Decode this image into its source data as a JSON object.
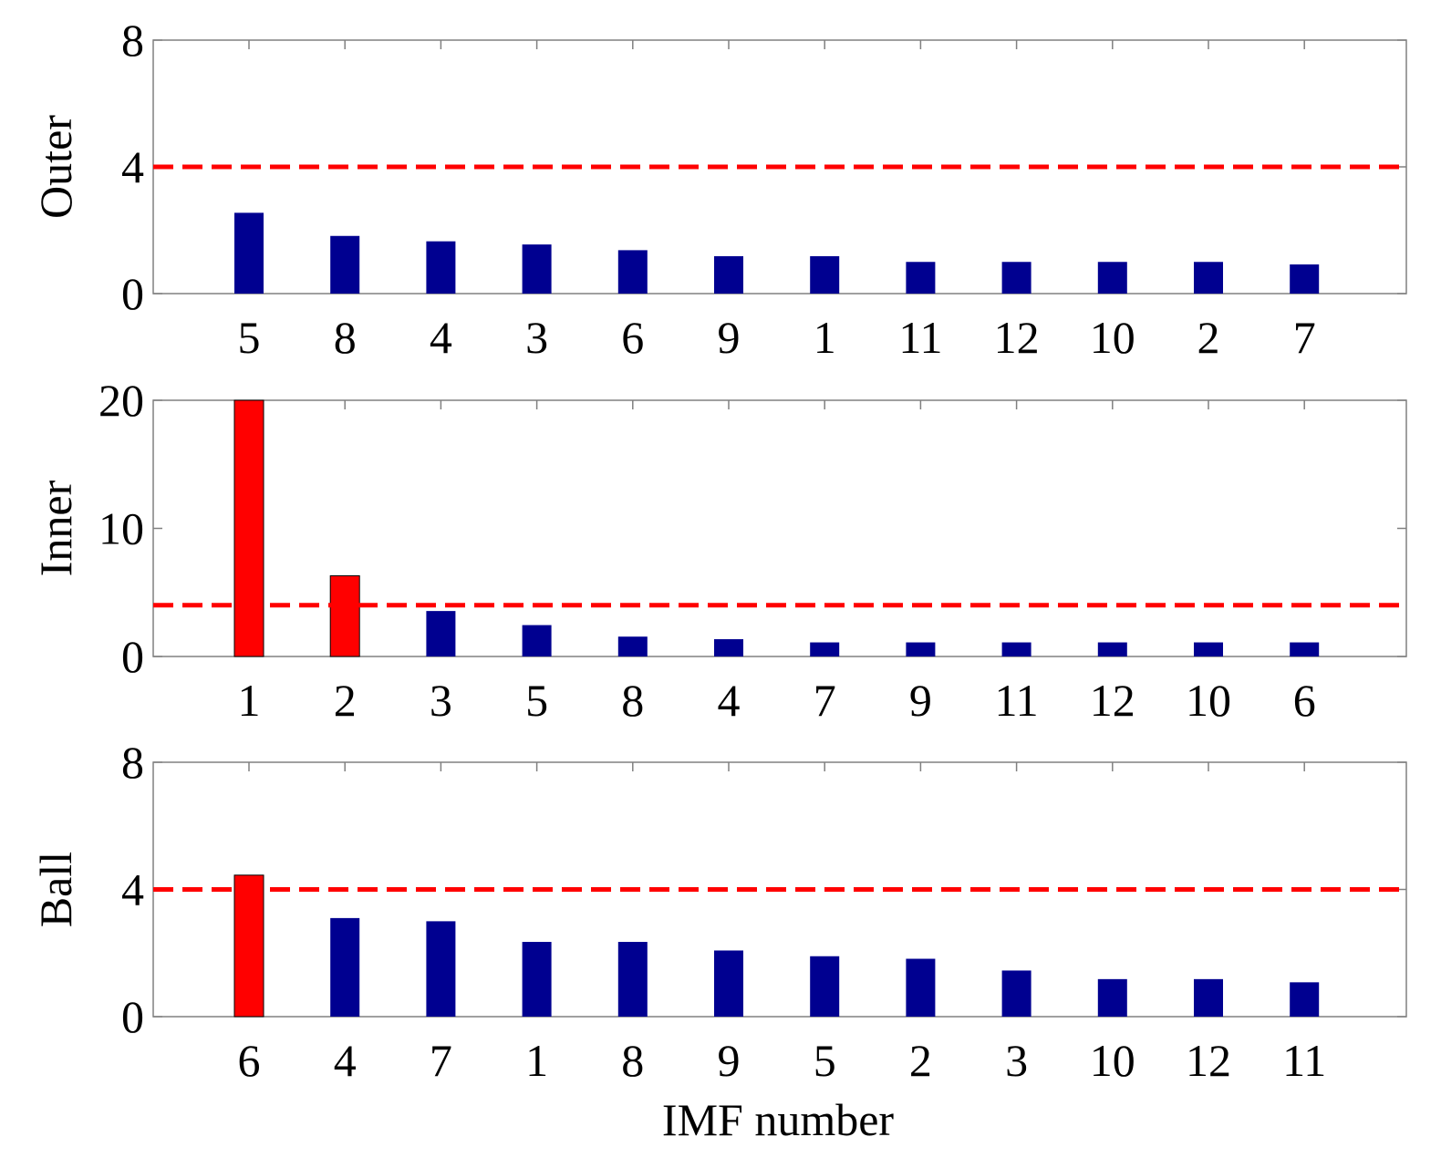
{
  "figure": {
    "xlabel": "IMF number",
    "colors": {
      "below_threshold": "#000090",
      "above_threshold": "#ff0000",
      "threshold_line": "#ff0000",
      "axes": "#808080"
    }
  },
  "chart_data": [
    {
      "type": "bar",
      "ylabel": "Outer",
      "categories": [
        "5",
        "8",
        "4",
        "3",
        "6",
        "9",
        "1",
        "11",
        "12",
        "10",
        "2",
        "7"
      ],
      "values": [
        2.55,
        1.82,
        1.65,
        1.55,
        1.37,
        1.18,
        1.18,
        1.0,
        1.0,
        1.0,
        1.0,
        0.92
      ],
      "threshold": 4,
      "ylim": [
        0,
        8
      ],
      "yticks": [
        "0",
        "4",
        "8"
      ],
      "yticks_values": [
        0,
        4,
        8
      ],
      "grid": false
    },
    {
      "type": "bar",
      "ylabel": "Inner",
      "categories": [
        "1",
        "2",
        "3",
        "5",
        "8",
        "4",
        "7",
        "9",
        "11",
        "12",
        "10",
        "6"
      ],
      "values": [
        20.0,
        6.3,
        3.55,
        2.45,
        1.55,
        1.35,
        1.1,
        1.1,
        1.1,
        1.1,
        1.1,
        1.1
      ],
      "threshold": 4,
      "ylim": [
        0,
        20
      ],
      "yticks": [
        "0",
        "10",
        "20"
      ],
      "yticks_values": [
        0,
        10,
        20
      ],
      "grid": false
    },
    {
      "type": "bar",
      "ylabel": "Ball",
      "categories": [
        "6",
        "4",
        "7",
        "1",
        "8",
        "9",
        "5",
        "2",
        "3",
        "10",
        "12",
        "11"
      ],
      "values": [
        4.45,
        3.1,
        3.0,
        2.35,
        2.35,
        2.08,
        1.9,
        1.82,
        1.45,
        1.18,
        1.18,
        1.08
      ],
      "threshold": 4,
      "ylim": [
        0,
        8
      ],
      "yticks": [
        "0",
        "4",
        "8"
      ],
      "yticks_values": [
        0,
        4,
        8
      ],
      "grid": false
    }
  ]
}
